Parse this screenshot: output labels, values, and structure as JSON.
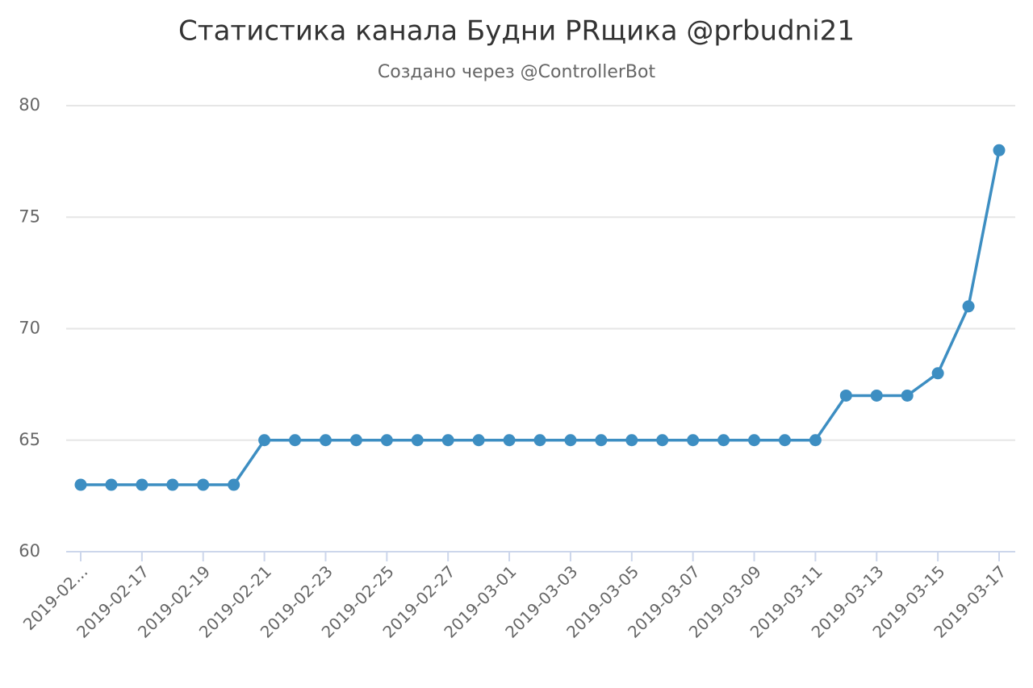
{
  "chart_data": {
    "type": "line",
    "title": "Статистика канала Будни PRщика @prbudni21",
    "subtitle": "Создано через @ControllerBot",
    "categories": [
      "2019-02...",
      null,
      "2019-02-17",
      null,
      "2019-02-19",
      null,
      "2019-02-21",
      null,
      "2019-02-23",
      null,
      "2019-02-25",
      null,
      "2019-02-27",
      null,
      "2019-03-01",
      null,
      "2019-03-03",
      null,
      "2019-03-05",
      null,
      "2019-03-07",
      null,
      "2019-03-09",
      null,
      "2019-03-11",
      null,
      "2019-03-13",
      null,
      "2019-03-15",
      null,
      "2019-03-17"
    ],
    "series": [
      {
        "color": "#3d8ec2",
        "values": [
          63,
          63,
          63,
          63,
          63,
          63,
          65,
          65,
          65,
          65,
          65,
          65,
          65,
          65,
          65,
          65,
          65,
          65,
          65,
          65,
          65,
          65,
          65,
          65,
          65,
          67,
          67,
          67,
          68,
          71,
          78
        ]
      }
    ],
    "ylim": [
      60,
      80
    ],
    "yticks": [
      60,
      65,
      70,
      75,
      80
    ],
    "grid": true
  }
}
